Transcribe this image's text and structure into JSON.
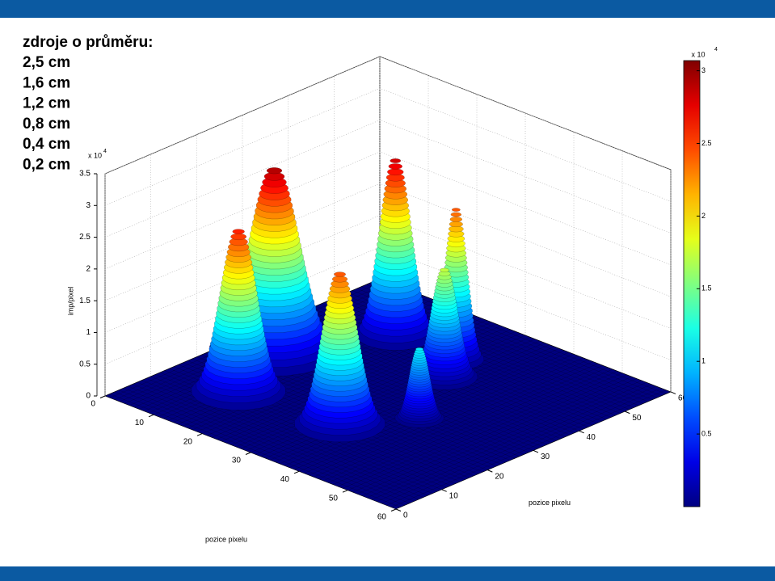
{
  "chart_data": {
    "type": "surface",
    "heading": "zdroje o průměru:",
    "sizes": [
      "2,5 cm",
      "1,6 cm",
      "1,2 cm",
      "0,8 cm",
      "0,4 cm",
      "0,2 cm"
    ],
    "xlabel": "pozice pixelu",
    "ylabel": "pozice pixelu",
    "zlabel": "imp/pixel",
    "xlim": [
      0,
      60
    ],
    "ylim": [
      0,
      60
    ],
    "zlim": [
      0,
      35000
    ],
    "xticks": [
      0,
      10,
      20,
      30,
      40,
      50,
      60
    ],
    "yticks": [
      0,
      10,
      20,
      30,
      40,
      50,
      60
    ],
    "zticks": [
      0,
      {
        "value": 5000,
        "label": "0.5"
      },
      {
        "value": 10000,
        "label": "1"
      },
      {
        "value": 15000,
        "label": "1.5"
      },
      {
        "value": 20000,
        "label": "2"
      },
      {
        "value": 25000,
        "label": "2.5"
      },
      {
        "value": 30000,
        "label": "3"
      },
      {
        "value": 35000,
        "label": "3.5"
      }
    ],
    "z_multiplier": "x 10",
    "z_exponent": "4",
    "clim": [
      0,
      30700
    ],
    "cticks": [
      {
        "value": 5000,
        "label": "0.5"
      },
      {
        "value": 10000,
        "label": "1"
      },
      {
        "value": 15000,
        "label": "1.5"
      },
      {
        "value": 20000,
        "label": "2"
      },
      {
        "value": 25000,
        "label": "2.5"
      },
      {
        "value": 30000,
        "label": "3"
      }
    ],
    "c_multiplier": "x 10",
    "c_exponent": "4",
    "colormap": "jet",
    "grid": true,
    "peaks": [
      {
        "x": 8,
        "y": 28.5,
        "value": 30000
      },
      {
        "x": 14.4,
        "y": 13.9,
        "value": 26700
      },
      {
        "x": 33.5,
        "y": 15.8,
        "value": 25000
      },
      {
        "x": 17,
        "y": 45.4,
        "value": 29000
      },
      {
        "x": 29.7,
        "y": 45.2,
        "value": 25000
      },
      {
        "x": 32.5,
        "y": 39.7,
        "value": 17800
      },
      {
        "x": 40,
        "y": 26.3,
        "value": 11500
      }
    ]
  }
}
